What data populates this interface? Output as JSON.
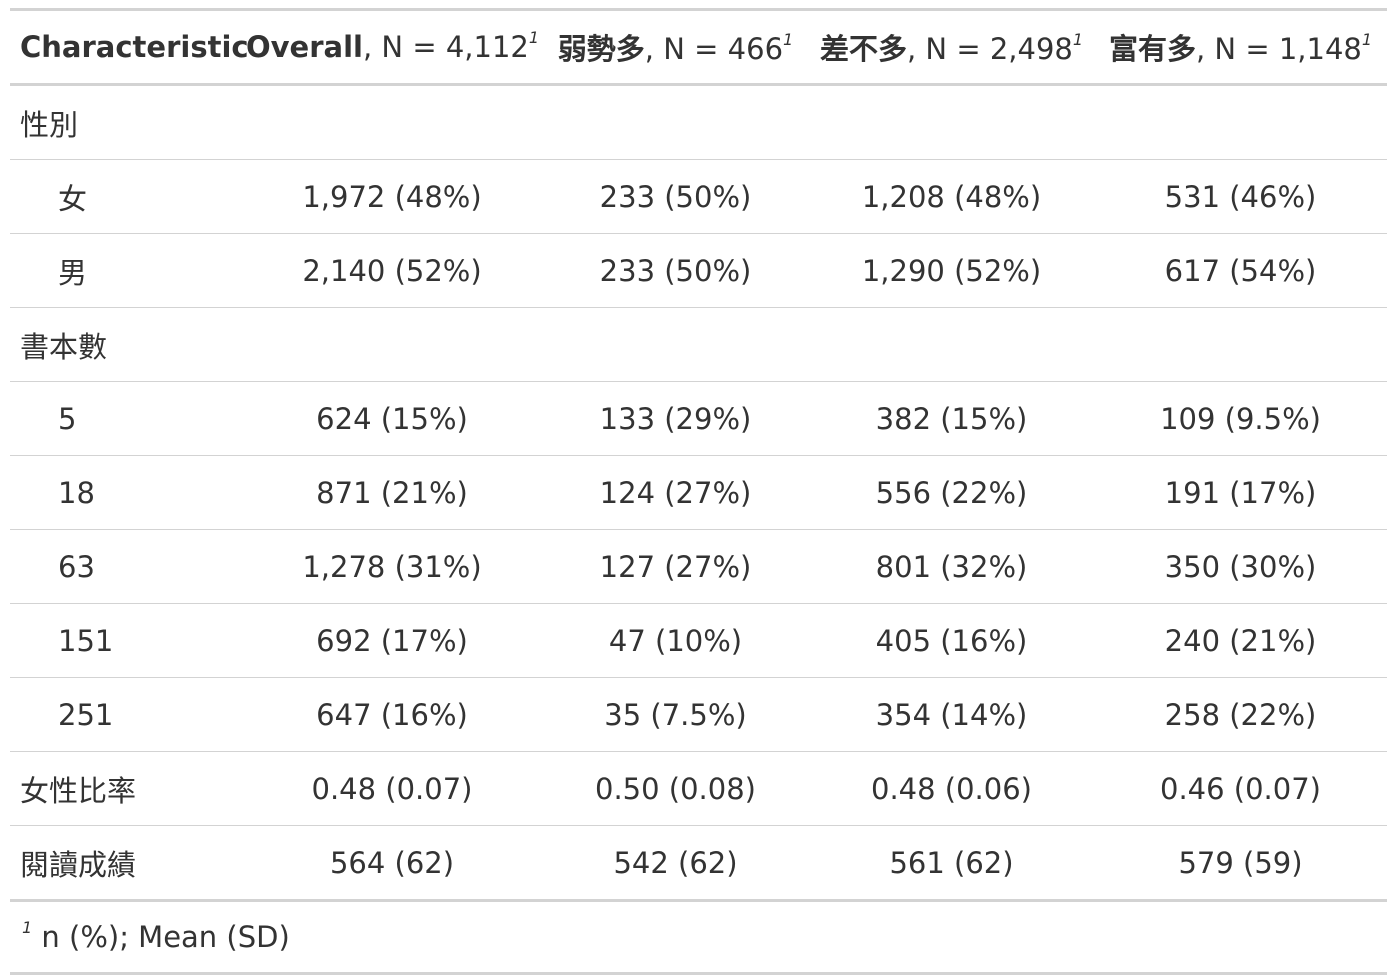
{
  "table": {
    "header": {
      "characteristic": "Characteristic",
      "columns": [
        {
          "bold": "Overall",
          "rest": ", N = 4,112",
          "sup": "1"
        },
        {
          "bold": "弱勢多",
          "rest": ", N = 466",
          "sup": "1"
        },
        {
          "bold": "差不多",
          "rest": ", N = 2,498",
          "sup": "1"
        },
        {
          "bold": "富有多",
          "rest": ", N = 1,148",
          "sup": "1"
        }
      ]
    },
    "rows": [
      {
        "label": "性別",
        "cells": [
          "",
          "",
          "",
          ""
        ]
      },
      {
        "label": "女",
        "cells": [
          "1,972 (48%)",
          "233 (50%)",
          "1,208 (48%)",
          "531 (46%)"
        ]
      },
      {
        "label": "男",
        "cells": [
          "2,140 (52%)",
          "233 (50%)",
          "1,290 (52%)",
          "617 (54%)"
        ]
      },
      {
        "label": "書本數",
        "cells": [
          "",
          "",
          "",
          ""
        ]
      },
      {
        "label": "5",
        "cells": [
          "624 (15%)",
          "133 (29%)",
          "382 (15%)",
          "109 (9.5%)"
        ]
      },
      {
        "label": "18",
        "cells": [
          "871 (21%)",
          "124 (27%)",
          "556 (22%)",
          "191 (17%)"
        ]
      },
      {
        "label": "63",
        "cells": [
          "1,278 (31%)",
          "127 (27%)",
          "801 (32%)",
          "350 (30%)"
        ]
      },
      {
        "label": "151",
        "cells": [
          "692 (17%)",
          "47 (10%)",
          "405 (16%)",
          "240 (21%)"
        ]
      },
      {
        "label": "251",
        "cells": [
          "647 (16%)",
          "35 (7.5%)",
          "354 (14%)",
          "258 (22%)"
        ]
      },
      {
        "label": "女性比率",
        "cells": [
          "0.48 (0.07)",
          "0.50 (0.08)",
          "0.48 (0.06)",
          "0.46 (0.07)"
        ]
      },
      {
        "label": "閱讀成績",
        "cells": [
          "564 (62)",
          "542 (62)",
          "561 (62)",
          "579 (59)"
        ]
      }
    ],
    "footnote": {
      "sup": "1",
      "text": "n (%); Mean (SD)"
    }
  }
}
